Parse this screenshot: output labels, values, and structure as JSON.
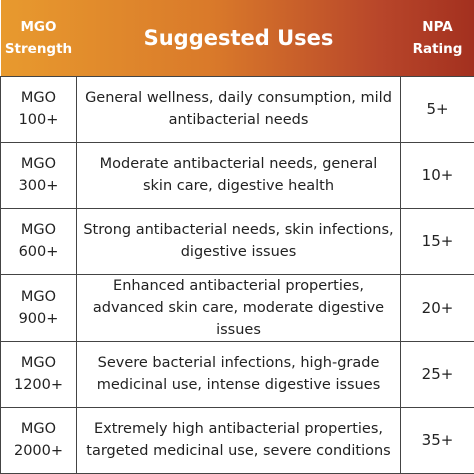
{
  "table": {
    "header": [
      "MGO Strength",
      "Suggested Uses",
      "NPA Rating"
    ],
    "rows": [
      [
        "MGO 100+",
        "General wellness, daily consumption, mild antibacterial needs",
        "5+"
      ],
      [
        "MGO 300+",
        "Moderate antibacterial needs, general skin care, digestive health",
        "10+"
      ],
      [
        "MGO 600+",
        "Strong antibacterial needs, skin infections, digestive issues",
        "15+"
      ],
      [
        "MGO 900+",
        "Enhanced antibacterial properties, advanced skin care, moderate digestive issues",
        "20+"
      ],
      [
        "MGO 1200+",
        "Severe bacterial infections, high-grade medicinal use, intense digestive issues",
        "25+"
      ],
      [
        "MGO 2000+",
        "Extremely high antibacterial properties, targeted medicinal use, severe conditions",
        "35+"
      ]
    ]
  }
}
